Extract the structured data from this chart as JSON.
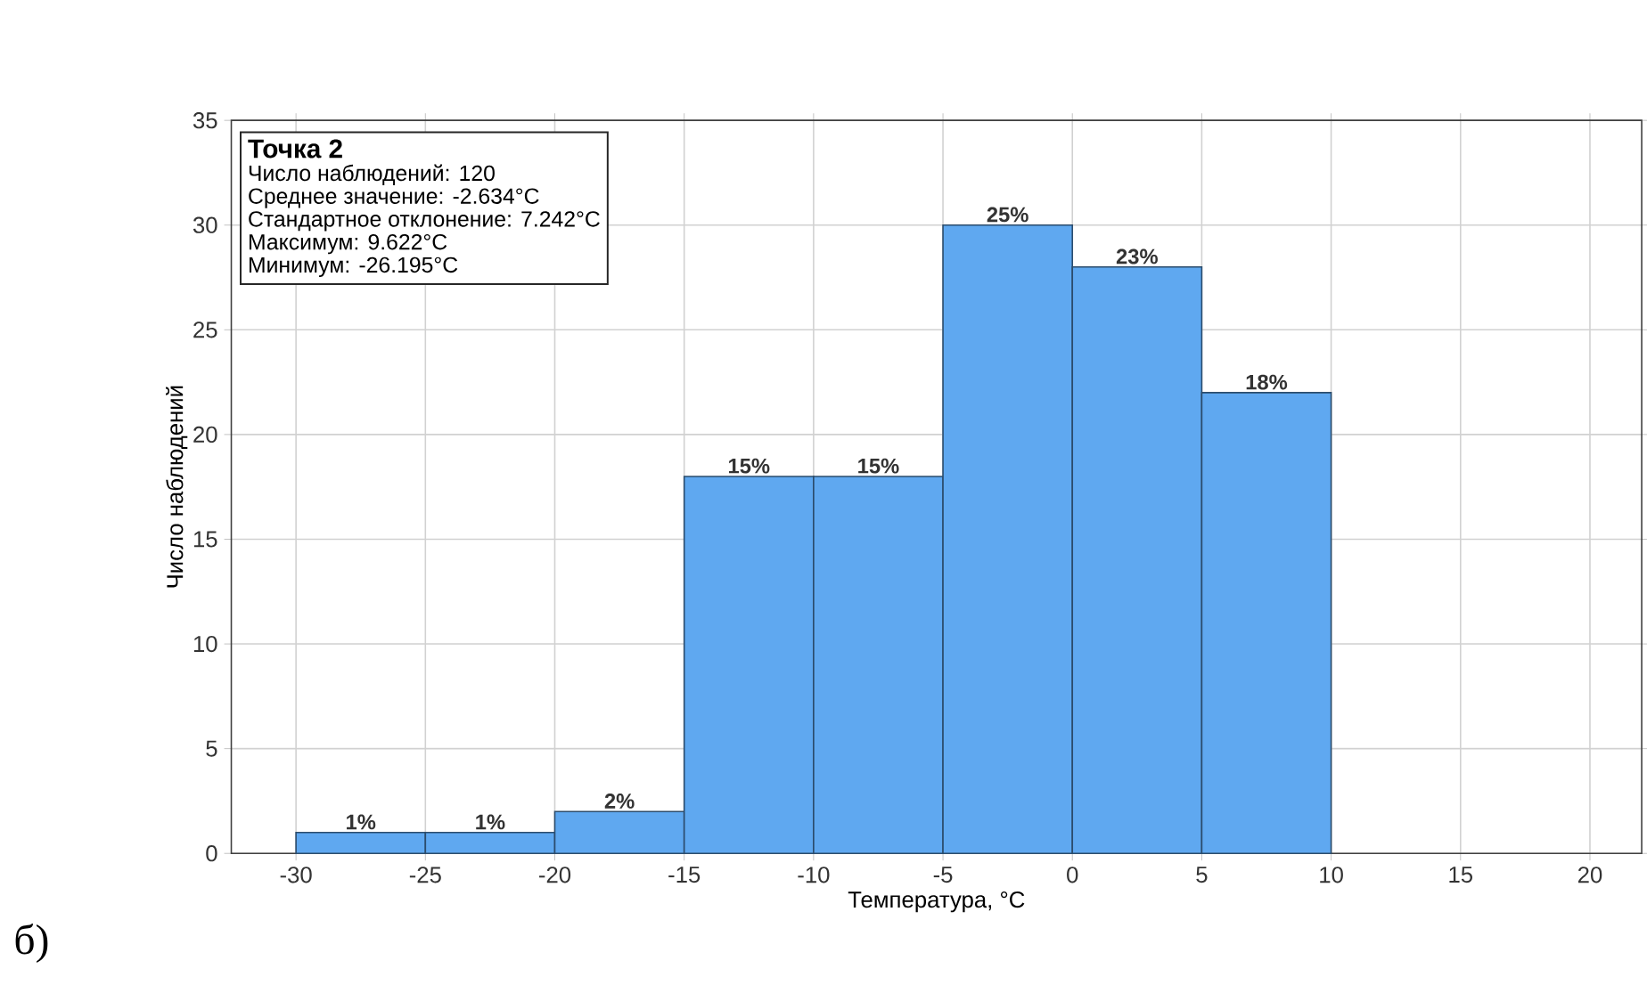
{
  "chart_data": {
    "type": "histogram",
    "xlabel": "Температура, °C",
    "ylabel": "Число наблюдений",
    "bins": [
      -30,
      -25,
      -20,
      -15,
      -10,
      -5,
      0,
      5,
      10
    ],
    "values": [
      1,
      1,
      2,
      18,
      18,
      30,
      28,
      22
    ],
    "color": "#5fa8f0",
    "xlim": [
      -32.5,
      22
    ],
    "xticks": [
      -30,
      -25,
      -20,
      -15,
      -10,
      -5,
      0,
      5,
      10,
      15,
      20
    ],
    "ylim": [
      0,
      35
    ],
    "yticks": [
      0,
      5,
      10,
      15,
      20,
      25,
      30,
      35
    ],
    "grid": true,
    "annotations": [
      "Точка 2",
      "Число наблюдений: 120",
      "Среднее значение: -2.634°C",
      "Стандартное отклонение: 7.242°C",
      "Максимум: 9.622°C",
      "Минимум: -26.195°C",
      "б)",
      "1%",
      "1%",
      "2%",
      "15%",
      "15%",
      "25%",
      "23%",
      "18%"
    ]
  }
}
